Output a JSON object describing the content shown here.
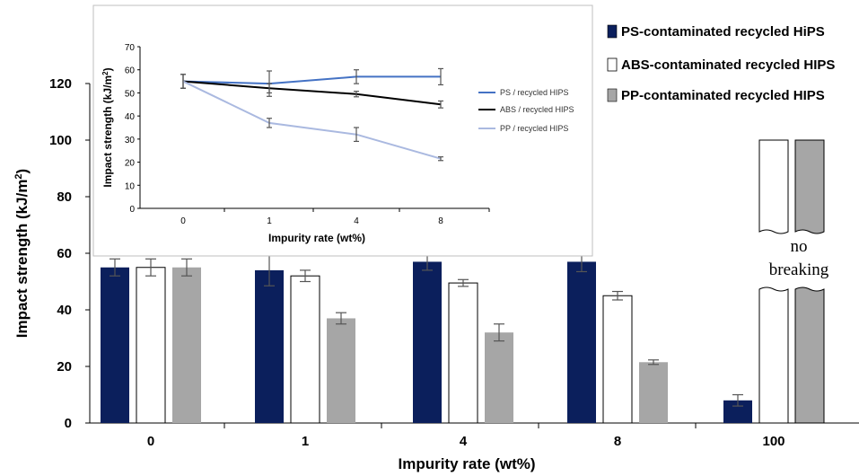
{
  "chart_data": [
    {
      "type": "bar",
      "categories": [
        "0",
        "1",
        "4",
        "8",
        "100"
      ],
      "xlabel": "Impurity rate (wt%)",
      "ylabel": "Impact strength (kJ/m",
      "ylabel_sup": "2",
      "ylabel_close": ")",
      "ylim": [
        0,
        120
      ],
      "yticks": [
        0,
        20,
        40,
        60,
        80,
        100,
        120
      ],
      "legend_position": "top-right",
      "no_breaking_label_1": "no",
      "no_breaking_label_2": "breaking",
      "series": [
        {
          "name": "PS-contaminated recycled HiPS",
          "color": "#0b1f5c",
          "values": [
            55,
            54,
            57,
            57,
            8
          ],
          "errors": [
            3,
            5.5,
            3,
            3.5,
            2
          ]
        },
        {
          "name": "ABS-contaminated recycled HIPS",
          "color": "#ffffff",
          "values": [
            55,
            52,
            49.5,
            45,
            null
          ],
          "errors": [
            3,
            2,
            1.2,
            1.5,
            null
          ]
        },
        {
          "name": "PP-contaminated recycled HIPS",
          "color": "#a6a6a6",
          "values": [
            55,
            37,
            32,
            21.5,
            null
          ],
          "errors": [
            3,
            2,
            3,
            0.8,
            null
          ]
        }
      ]
    },
    {
      "type": "line",
      "categories": [
        "0",
        "1",
        "4",
        "8"
      ],
      "xlabel": "Impurity rate (wt%)",
      "ylabel": "Impact strength (kJ/m",
      "ylabel_sup": "2",
      "ylabel_close": ")",
      "ylim": [
        0,
        70
      ],
      "yticks": [
        0,
        10,
        20,
        30,
        40,
        50,
        60,
        70
      ],
      "legend_position": "right",
      "series": [
        {
          "name": "PS / recycled HIPS",
          "color": "#4472c4",
          "values": [
            55,
            54,
            57,
            57
          ],
          "errors": [
            3,
            5.5,
            3,
            3.5
          ]
        },
        {
          "name": "ABS / recycled HIPS",
          "color": "#000000",
          "values": [
            55,
            52,
            49.5,
            45
          ],
          "errors": [
            3,
            2,
            1.2,
            1.5
          ]
        },
        {
          "name": "PP / recycled HIPS",
          "color": "#aab9e0",
          "values": [
            55,
            37,
            32,
            21.5
          ],
          "errors": [
            3,
            2,
            3,
            0.8
          ]
        }
      ]
    }
  ]
}
